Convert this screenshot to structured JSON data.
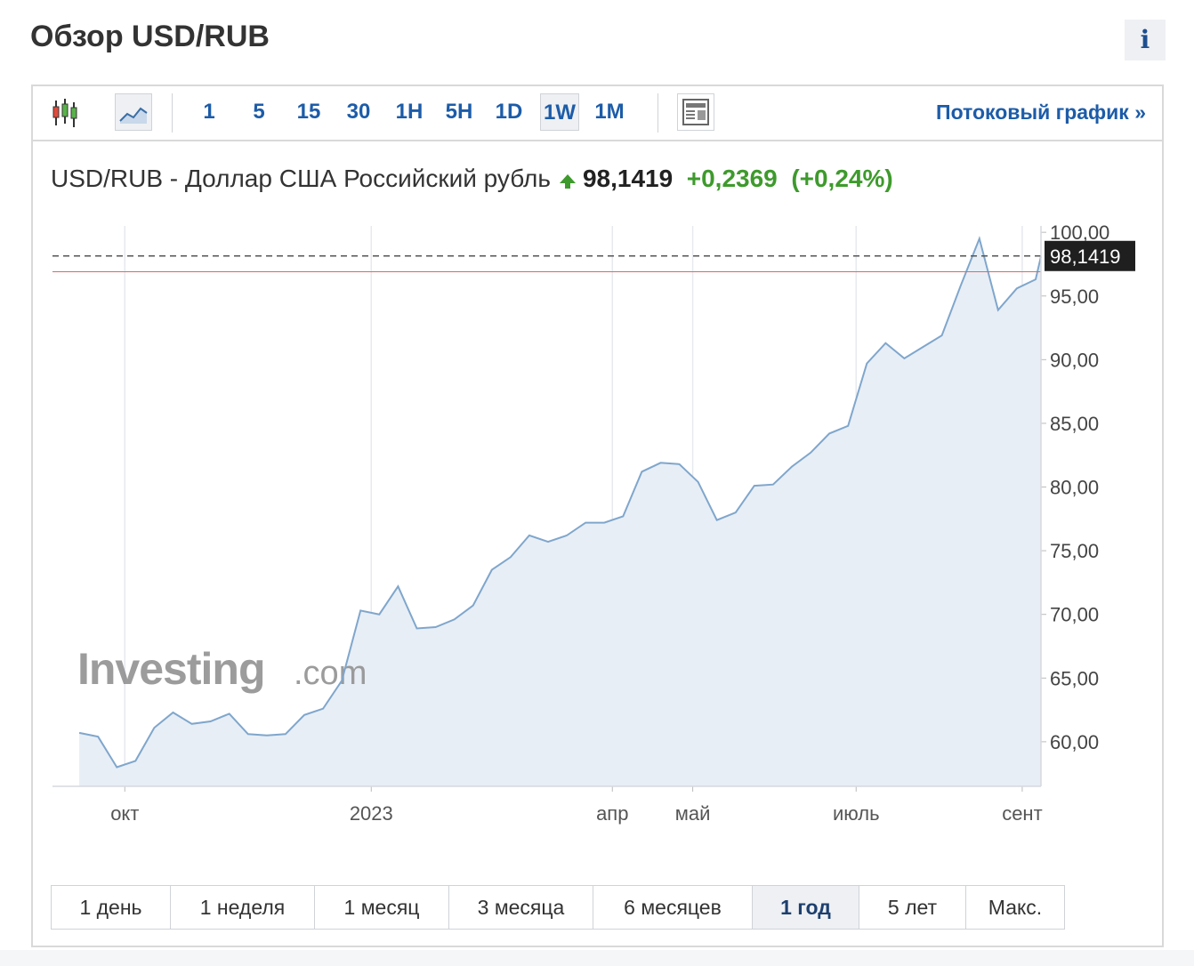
{
  "header": {
    "title": "Обзор USD/RUB",
    "info_label": "i"
  },
  "toolbar": {
    "chart_type_icons": [
      "candlestick-icon",
      "area-chart-icon"
    ],
    "periods": [
      {
        "label": "1",
        "active": false
      },
      {
        "label": "5",
        "active": false
      },
      {
        "label": "15",
        "active": false
      },
      {
        "label": "30",
        "active": false
      },
      {
        "label": "1H",
        "active": false
      },
      {
        "label": "5H",
        "active": false
      },
      {
        "label": "1D",
        "active": false
      },
      {
        "label": "1W",
        "active": true
      },
      {
        "label": "1M",
        "active": false
      }
    ],
    "news_icon": "news-icon",
    "stream_link": "Потоковый график »"
  },
  "quote": {
    "name": "USD/RUB - Доллар США Российский рубль",
    "direction_icon": "up-arrow-icon",
    "price": "98,1419",
    "change": "+0,2369",
    "change_pct": "(+0,24%)"
  },
  "watermark": {
    "brand": "Investing",
    "suffix": ".com"
  },
  "chart_data": {
    "type": "area",
    "title": "",
    "xlabel": "",
    "ylabel": "",
    "ylim": [
      56.5,
      100.5
    ],
    "y_ticks": [
      60,
      65,
      70,
      75,
      80,
      85,
      90,
      95,
      100
    ],
    "y_tick_labels": [
      "60,00",
      "65,00",
      "70,00",
      "75,00",
      "80,00",
      "85,00",
      "90,00",
      "95,00",
      "100,00"
    ],
    "x_ticks": [
      {
        "label": "окт",
        "date": "2022-10-01"
      },
      {
        "label": "2023",
        "date": "2023-01-01"
      },
      {
        "label": "апр",
        "date": "2023-04-01"
      },
      {
        "label": "май",
        "date": "2023-05-01"
      },
      {
        "label": "июль",
        "date": "2023-07-01"
      },
      {
        "label": "сент",
        "date": "2023-09-01"
      }
    ],
    "xlim": [
      "2022-09-04",
      "2023-09-08"
    ],
    "series": [
      {
        "name": "",
        "color": "#7fa6cc",
        "fill": "#e8eef6",
        "points": [
          [
            "2022-09-14",
            60.7
          ],
          [
            "2022-09-21",
            60.4
          ],
          [
            "2022-09-28",
            58.0
          ],
          [
            "2022-10-05",
            58.5
          ],
          [
            "2022-10-12",
            61.1
          ],
          [
            "2022-10-19",
            62.3
          ],
          [
            "2022-10-26",
            61.4
          ],
          [
            "2022-11-02",
            61.6
          ],
          [
            "2022-11-09",
            62.2
          ],
          [
            "2022-11-16",
            60.6
          ],
          [
            "2022-11-23",
            60.5
          ],
          [
            "2022-11-30",
            60.6
          ],
          [
            "2022-12-07",
            62.1
          ],
          [
            "2022-12-14",
            62.6
          ],
          [
            "2022-12-21",
            64.8
          ],
          [
            "2022-12-28",
            70.3
          ],
          [
            "2023-01-04",
            70.0
          ],
          [
            "2023-01-11",
            72.2
          ],
          [
            "2023-01-18",
            68.9
          ],
          [
            "2023-01-25",
            69.0
          ],
          [
            "2023-02-01",
            69.6
          ],
          [
            "2023-02-08",
            70.7
          ],
          [
            "2023-02-15",
            73.5
          ],
          [
            "2023-02-22",
            74.5
          ],
          [
            "2023-03-01",
            76.2
          ],
          [
            "2023-03-08",
            75.7
          ],
          [
            "2023-03-15",
            76.2
          ],
          [
            "2023-03-22",
            77.2
          ],
          [
            "2023-03-29",
            77.2
          ],
          [
            "2023-04-05",
            77.7
          ],
          [
            "2023-04-12",
            81.2
          ],
          [
            "2023-04-19",
            81.9
          ],
          [
            "2023-04-26",
            81.8
          ],
          [
            "2023-05-03",
            80.4
          ],
          [
            "2023-05-10",
            77.4
          ],
          [
            "2023-05-17",
            78.0
          ],
          [
            "2023-05-24",
            80.1
          ],
          [
            "2023-05-31",
            80.2
          ],
          [
            "2023-06-07",
            81.6
          ],
          [
            "2023-06-14",
            82.7
          ],
          [
            "2023-06-21",
            84.2
          ],
          [
            "2023-06-28",
            84.8
          ],
          [
            "2023-07-05",
            89.7
          ],
          [
            "2023-07-12",
            91.3
          ],
          [
            "2023-07-19",
            90.1
          ],
          [
            "2023-07-26",
            91.0
          ],
          [
            "2023-08-02",
            91.9
          ],
          [
            "2023-08-09",
            95.8
          ],
          [
            "2023-08-16",
            99.5
          ],
          [
            "2023-08-23",
            93.9
          ],
          [
            "2023-08-30",
            95.6
          ],
          [
            "2023-09-06",
            96.3
          ],
          [
            "2023-09-08",
            98.1
          ]
        ]
      }
    ],
    "last_value": 98.1419,
    "last_value_label": "98,1419",
    "reference_line": {
      "value": 96.9,
      "color": "#e06666"
    },
    "current_price_line": {
      "value": 98.1419,
      "style": "dashed",
      "color": "#555555"
    },
    "grid": {
      "vertical": true,
      "horizontal": false
    },
    "axis_position": "right"
  },
  "ranges": [
    {
      "label": "1 день",
      "active": false
    },
    {
      "label": "1 неделя",
      "active": false
    },
    {
      "label": "1 месяц",
      "active": false
    },
    {
      "label": "3 месяца",
      "active": false
    },
    {
      "label": "6 месяцев",
      "active": false
    },
    {
      "label": "1 год",
      "active": true
    },
    {
      "label": "5 лет",
      "active": false
    },
    {
      "label": "Макс.",
      "active": false
    }
  ]
}
